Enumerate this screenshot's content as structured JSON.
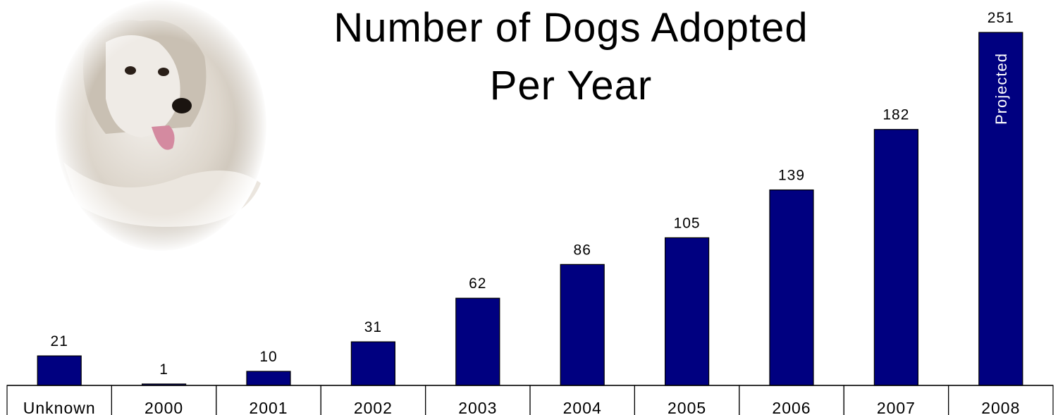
{
  "chart_data": {
    "type": "bar",
    "title_lines": [
      "Number of Dogs Adopted",
      "Per Year"
    ],
    "categories": [
      "Unknown",
      "2000",
      "2001",
      "2002",
      "2003",
      "2004",
      "2005",
      "2006",
      "2007",
      "2008"
    ],
    "values": [
      21,
      1,
      10,
      31,
      62,
      86,
      105,
      139,
      182,
      251
    ],
    "data_labels": [
      "21",
      "1",
      "10",
      "31",
      "62",
      "86",
      "105",
      "139",
      "182",
      "251"
    ],
    "bar_annotation": {
      "category": "2008",
      "text": "Projected"
    },
    "ylim": [
      0,
      251
    ],
    "grid": false,
    "legend": "none"
  },
  "image": {
    "name": "dog-photo",
    "subject": "fluffy white dog with tongue out, vignette oval"
  },
  "colors": {
    "bar": "#000080",
    "bar_stroke": "#000000",
    "text": "#000000",
    "annotation": "#ffffff"
  }
}
